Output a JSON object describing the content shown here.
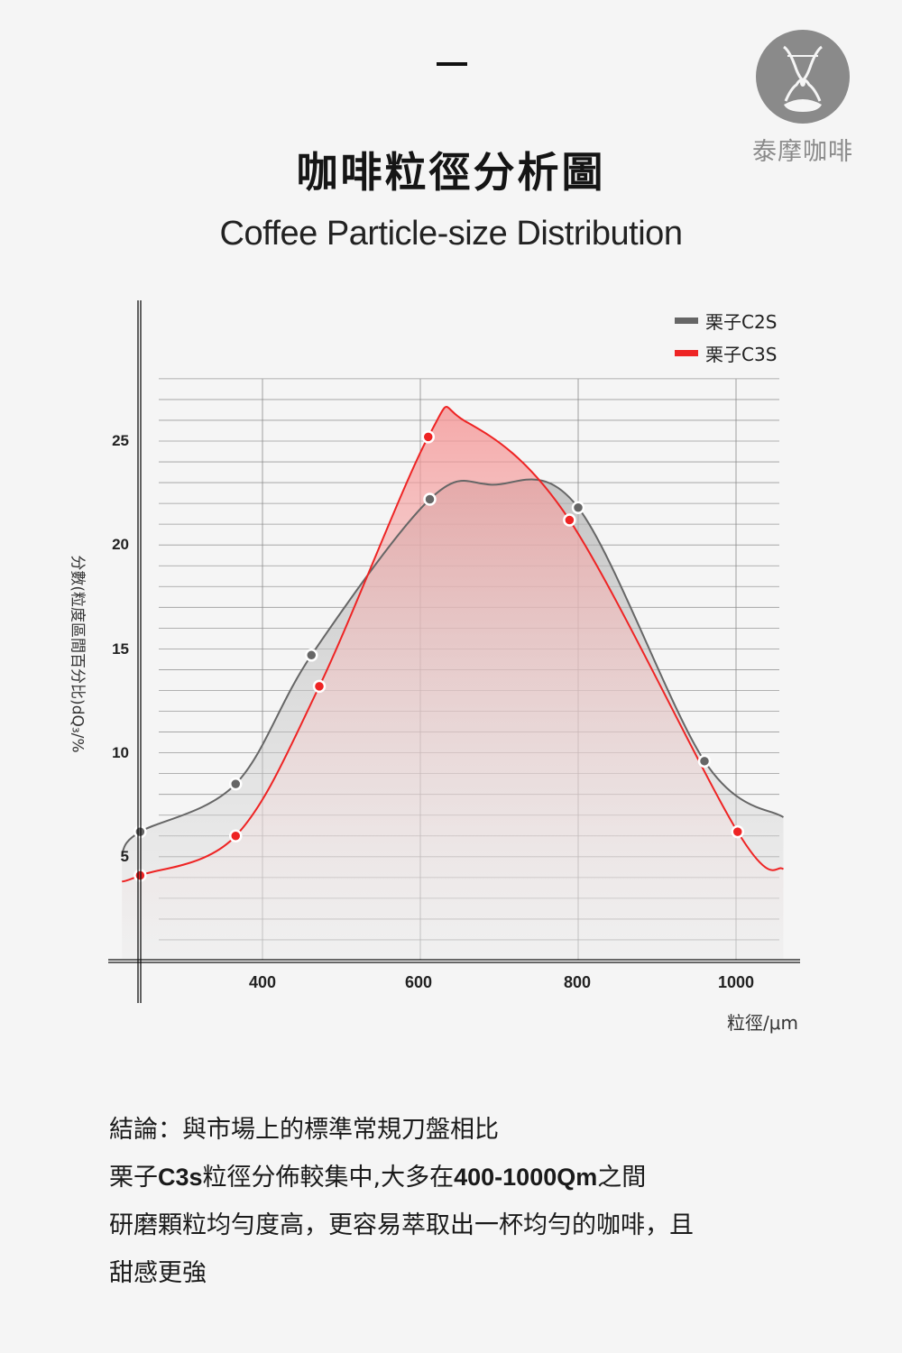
{
  "header": {
    "dash": "—",
    "title_zh": "咖啡粒徑分析圖",
    "title_en": "Coffee Particle-size Distribution"
  },
  "logo": {
    "icon": "hourglass-coffee-icon",
    "text": "泰摩咖啡",
    "color": "#8a8a8a"
  },
  "chart_data": {
    "type": "line",
    "title": "咖啡粒徑分析圖 / Coffee Particle-size Distribution",
    "xlabel": "粒徑/μm",
    "ylabel": "分數(粒度區間百分比)dQ₃/%",
    "x_ticks": [
      400,
      600,
      800,
      1000
    ],
    "y_ticks": [
      5,
      10,
      15,
      20,
      25
    ],
    "xlim": [
      245,
      1065
    ],
    "ylim": [
      0,
      28
    ],
    "grid": true,
    "legend_position": "top-right",
    "series": [
      {
        "name": "栗子C2S",
        "color": "#666666",
        "fill": "#cccccc",
        "points": [
          [
            245,
            6.2
          ],
          [
            366,
            8.5
          ],
          [
            462,
            14.7
          ],
          [
            612,
            22.2
          ],
          [
            800,
            21.8
          ],
          [
            960,
            9.6
          ]
        ],
        "curve_endpoints": [
          [
            222,
            5.2
          ],
          [
            1060,
            6.9
          ]
        ]
      },
      {
        "name": "栗子C3S",
        "color": "#ee2424",
        "fill": "#f5a0a0",
        "points": [
          [
            245,
            4.1
          ],
          [
            366,
            6.0
          ],
          [
            472,
            13.2
          ],
          [
            610,
            25.2
          ],
          [
            789,
            21.2
          ],
          [
            1002,
            6.2
          ]
        ],
        "curve_endpoints": [
          [
            222,
            3.8
          ],
          [
            1060,
            4.4
          ]
        ]
      }
    ]
  },
  "legend": {
    "items": [
      {
        "label": "栗子C2S",
        "color": "#666666"
      },
      {
        "label": "栗子C3S",
        "color": "#ee2424"
      }
    ]
  },
  "axes": {
    "y_ticks": [
      "25",
      "20",
      "15",
      "10",
      "5"
    ],
    "x_ticks": [
      "400",
      "600",
      "800",
      "1000"
    ],
    "xlabel": "粒徑/μm",
    "ylabel": "分數(粒度區間百分比)dQ₃/%"
  },
  "conclusion": {
    "line1": "結論：與市場上的標準常規刀盤相比",
    "line2_a": "栗子",
    "line2_b": "C3s",
    "line2_c": "粒徑分佈較集中,大多在",
    "line2_d": "400-1000Qm",
    "line2_e": "之間",
    "line3": "研磨顆粒均勻度高，更容易萃取出一杯均勻的咖啡，且",
    "line4": "甜感更強"
  }
}
